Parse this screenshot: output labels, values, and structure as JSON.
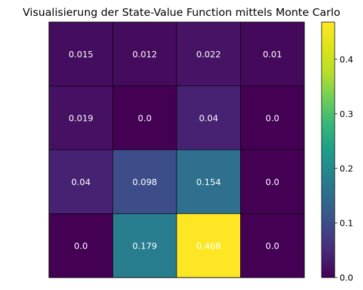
{
  "chart_data": {
    "type": "heatmap",
    "title": "Visualisierung der State-Value Function mittels Monte Carlo",
    "rows": 4,
    "cols": 4,
    "values": [
      [
        0.015,
        0.012,
        0.022,
        0.01
      ],
      [
        0.019,
        0.0,
        0.04,
        0.0
      ],
      [
        0.04,
        0.098,
        0.154,
        0.0
      ],
      [
        0.0,
        0.179,
        0.468,
        0.0
      ]
    ],
    "cell_labels": [
      [
        "0.015",
        "0.012",
        "0.022",
        "0.01"
      ],
      [
        "0.019",
        "0.0",
        "0.04",
        "0.0"
      ],
      [
        "0.04",
        "0.098",
        "0.154",
        "0.0"
      ],
      [
        "0.0",
        "0.179",
        "0.468",
        "0.0"
      ]
    ],
    "colormap": "viridis",
    "vmin": 0.0,
    "vmax": 0.468,
    "colorbar": {
      "ticks": [
        0.0,
        0.1,
        0.2,
        0.3,
        0.4
      ],
      "tick_labels": [
        "0.0",
        "0.1",
        "0.2",
        "0.3",
        "0.4"
      ]
    },
    "xlabel": "",
    "ylabel": "",
    "axis_ticks_hidden": true
  }
}
